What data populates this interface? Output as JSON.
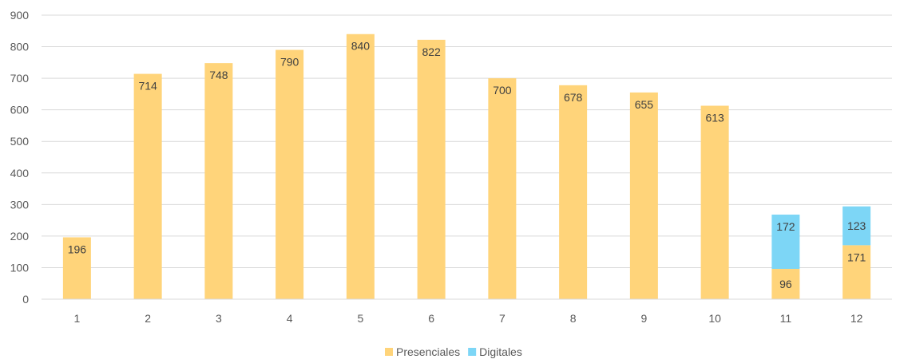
{
  "chart_data": {
    "type": "bar",
    "stacked": true,
    "categories": [
      "1",
      "2",
      "3",
      "4",
      "5",
      "6",
      "7",
      "8",
      "9",
      "10",
      "11",
      "12"
    ],
    "series": [
      {
        "name": "Presenciales",
        "color": "#FFD47A",
        "values": [
          196,
          714,
          748,
          790,
          840,
          822,
          700,
          678,
          655,
          613,
          96,
          171
        ]
      },
      {
        "name": "Digitales",
        "color": "#7DD6F6",
        "values": [
          null,
          null,
          null,
          null,
          null,
          null,
          null,
          null,
          null,
          null,
          172,
          123
        ]
      }
    ],
    "ylim": [
      0,
      900
    ],
    "yticks": [
      "0",
      "100",
      "200",
      "300",
      "400",
      "500",
      "600",
      "700",
      "800",
      "900"
    ],
    "grid": true,
    "legend_position": "bottom"
  }
}
